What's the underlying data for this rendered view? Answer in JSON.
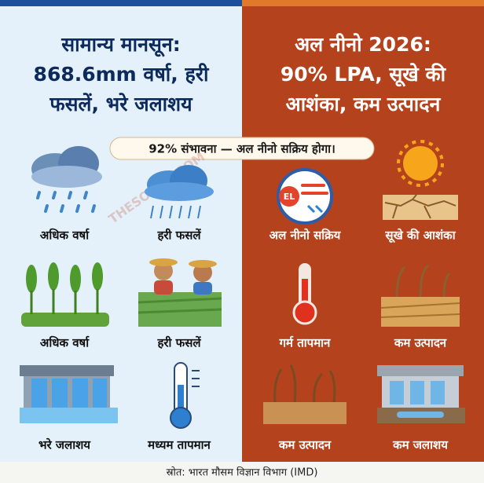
{
  "left": {
    "title_lines": [
      "सामान्य मानसून:",
      "868.6mm वर्षा, हरी",
      "फसलें, भरे जलाशय"
    ],
    "items": [
      "अधिक वर्षा",
      "हरी फसलें",
      "अधिक वर्षा",
      "हरी फसलें",
      "भरे जलाशय",
      "मध्यम तापमान"
    ]
  },
  "right": {
    "title_lines": [
      "अल नीनो 2026:",
      "90% LPA, सूखे की",
      "आशंका, कम उत्पादन"
    ],
    "items": [
      "अल नीनो सक्रिय",
      "सूखे की आशंका",
      "गर्म तापमान",
      "कम उत्पादन",
      "कम उत्पादन",
      "कम जलाशय"
    ],
    "badge": "EL"
  },
  "banner": "92% संभावना — अल नीनो सक्रिय होगा।",
  "watermark": "THESOOTR.COM",
  "source": "स्रोत: भारत मौसम विज्ञान विभाग (IMD)"
}
